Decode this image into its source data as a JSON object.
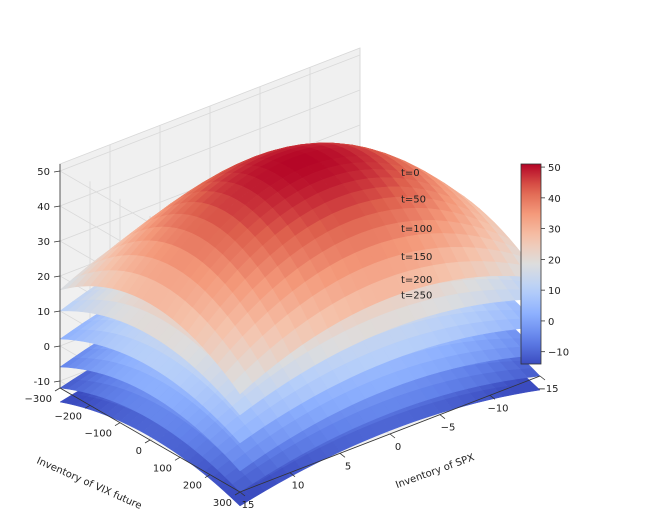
{
  "chart_data": {
    "type": "surface3d",
    "title": "",
    "xlabel": "Inventory of SPX",
    "ylabel": "Inventory of VIX future",
    "zlabel": "",
    "x_ticks": [
      -15,
      -10,
      -5,
      0,
      5,
      10,
      15
    ],
    "y_ticks": [
      -300,
      -200,
      -100,
      0,
      100,
      200,
      300
    ],
    "z_ticks": [
      -10,
      0,
      10,
      20,
      30,
      40,
      50
    ],
    "xlim": [
      -15,
      15
    ],
    "ylim": [
      -300,
      300
    ],
    "zlim": [
      -12,
      52
    ],
    "colormap": "coolwarm",
    "colorbar": {
      "range": [
        -14,
        51
      ],
      "ticks": [
        -10,
        0,
        10,
        20,
        30,
        40,
        50
      ]
    },
    "grid": true,
    "series": [
      {
        "name": "t=0",
        "peak": 51.0,
        "edge_drop": 24,
        "corner_drop": 35
      },
      {
        "name": "t=50",
        "peak": 36.0,
        "edge_drop": 18,
        "corner_drop": 26
      },
      {
        "name": "t=100",
        "peak": 24.0,
        "edge_drop": 15,
        "corner_drop": 22
      },
      {
        "name": "t=150",
        "peak": 14.0,
        "edge_drop": 13,
        "corner_drop": 20
      },
      {
        "name": "t=200",
        "peak": 6.0,
        "edge_drop": 12,
        "corner_drop": 18
      },
      {
        "name": "t=250",
        "peak": 0.0,
        "edge_drop": 11,
        "corner_drop": 16
      }
    ]
  }
}
